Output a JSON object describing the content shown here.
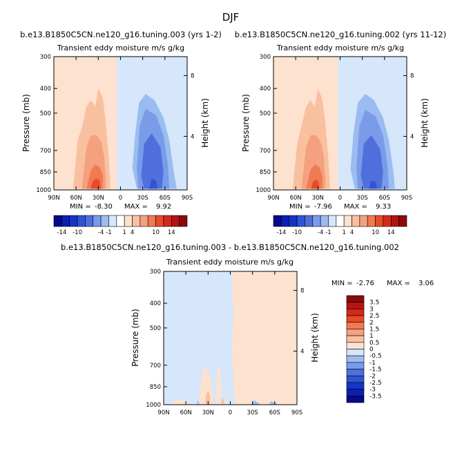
{
  "figure_title": "DJF",
  "chart_data": [
    {
      "type": "heatmap",
      "title": "b.e13.B1850C5CN.ne120_g16.tuning.003 (yrs 1-2)",
      "subtitle": "Transient eddy moisture m/s g/kg",
      "ylabel": "Pressure (mb)",
      "y2label": "Height (km)",
      "xticks": [
        "90N",
        "60N",
        "30N",
        "0",
        "30S",
        "60S",
        "90S"
      ],
      "yticks": [
        "300",
        "400",
        "500",
        "700",
        "850",
        "1000"
      ],
      "y2ticks": [
        "8",
        "4"
      ],
      "xlim": [
        90,
        -90
      ],
      "ylim": [
        1000,
        300
      ],
      "yscale": "log",
      "min_label": "MIN =",
      "min_value": "-8.30",
      "max_label": "MAX =",
      "max_value": "9.92",
      "contour_levels": [
        -14,
        -12,
        -10,
        -8,
        -6,
        -4,
        -2,
        -1,
        0,
        1,
        2,
        4,
        6,
        8,
        10,
        12,
        14
      ],
      "colorbar_labels": [
        "-14",
        "-10",
        "-4",
        "-1",
        "1",
        "4",
        "10",
        "14"
      ],
      "fields": [
        {
          "color": "#fde2cf",
          "points": [
            [
              90,
              300
            ],
            [
              5,
              300
            ],
            [
              5,
              1000
            ],
            [
              90,
              1000
            ]
          ]
        },
        {
          "color": "#d6e6fb",
          "points": [
            [
              5,
              300
            ],
            [
              -90,
              300
            ],
            [
              -90,
              1000
            ],
            [
              5,
              1000
            ]
          ]
        },
        {
          "color": "#f9c0a0",
          "points": [
            [
              58,
              640
            ],
            [
              52,
              570
            ],
            [
              46,
              470
            ],
            [
              40,
              445
            ],
            [
              34,
              470
            ],
            [
              30,
              400
            ],
            [
              24,
              435
            ],
            [
              20,
              540
            ],
            [
              16,
              740
            ],
            [
              14,
              930
            ],
            [
              14,
              990
            ],
            [
              64,
              990
            ],
            [
              62,
              860
            ]
          ]
        },
        {
          "color": "#f5a07e",
          "points": [
            [
              50,
              860
            ],
            [
              46,
              680
            ],
            [
              40,
              610
            ],
            [
              32,
              610
            ],
            [
              26,
              650
            ],
            [
              22,
              740
            ],
            [
              20,
              900
            ],
            [
              20,
              990
            ],
            [
              52,
              990
            ]
          ]
        },
        {
          "color": "#f07a52",
          "points": [
            [
              44,
              940
            ],
            [
              40,
              835
            ],
            [
              34,
              795
            ],
            [
              28,
              815
            ],
            [
              24,
              880
            ],
            [
              24,
              990
            ],
            [
              46,
              990
            ]
          ]
        },
        {
          "color": "#e84a2a",
          "points": [
            [
              40,
              990
            ],
            [
              38,
              930
            ],
            [
              33,
              900
            ],
            [
              28,
              920
            ],
            [
              27,
              990
            ]
          ]
        },
        {
          "color": "#9bbcf1",
          "points": [
            [
              -16,
              820
            ],
            [
              -20,
              600
            ],
            [
              -25,
              455
            ],
            [
              -34,
              420
            ],
            [
              -46,
              445
            ],
            [
              -58,
              520
            ],
            [
              -66,
              640
            ],
            [
              -72,
              850
            ],
            [
              -76,
              990
            ],
            [
              -22,
              990
            ]
          ]
        },
        {
          "color": "#7a9be8",
          "points": [
            [
              -22,
              820
            ],
            [
              -26,
              560
            ],
            [
              -34,
              480
            ],
            [
              -48,
              510
            ],
            [
              -58,
              610
            ],
            [
              -64,
              800
            ],
            [
              -66,
              990
            ],
            [
              -24,
              990
            ]
          ]
        },
        {
          "color": "#4f6fdc",
          "points": [
            [
              -28,
              880
            ],
            [
              -32,
              660
            ],
            [
              -42,
              600
            ],
            [
              -54,
              680
            ],
            [
              -58,
              850
            ],
            [
              -56,
              990
            ],
            [
              -32,
              990
            ]
          ]
        },
        {
          "color": "#2f55d0",
          "points": [
            [
              -40,
              960
            ],
            [
              -42,
              900
            ],
            [
              -48,
              920
            ],
            [
              -50,
              990
            ],
            [
              -38,
              990
            ]
          ]
        }
      ]
    },
    {
      "type": "heatmap",
      "title": "b.e13.B1850C5CN.ne120_g16.tuning.002 (yrs 11-12)",
      "subtitle": "Transient eddy moisture m/s g/kg",
      "ylabel": "Pressure (mb)",
      "y2label": "Height (km)",
      "xticks": [
        "90N",
        "60N",
        "30N",
        "0",
        "30S",
        "60S",
        "90S"
      ],
      "yticks": [
        "300",
        "400",
        "500",
        "700",
        "850",
        "1000"
      ],
      "y2ticks": [
        "8",
        "4"
      ],
      "xlim": [
        90,
        -90
      ],
      "ylim": [
        1000,
        300
      ],
      "yscale": "log",
      "min_label": "MIN =",
      "min_value": "-7.96",
      "max_label": "MAX =",
      "max_value": "9.33",
      "contour_levels": [
        -14,
        -12,
        -10,
        -8,
        -6,
        -4,
        -2,
        -1,
        0,
        1,
        2,
        4,
        6,
        8,
        10,
        12,
        14
      ],
      "colorbar_labels": [
        "-14",
        "-10",
        "-4",
        "-1",
        "1",
        "4",
        "10",
        "14"
      ],
      "fields": [
        {
          "color": "#fde2cf",
          "points": [
            [
              90,
              300
            ],
            [
              3,
              300
            ],
            [
              3,
              1000
            ],
            [
              90,
              1000
            ]
          ]
        },
        {
          "color": "#d6e6fb",
          "points": [
            [
              3,
              300
            ],
            [
              -90,
              300
            ],
            [
              -90,
              1000
            ],
            [
              3,
              1000
            ]
          ]
        },
        {
          "color": "#f9c0a0",
          "points": [
            [
              58,
              660
            ],
            [
              52,
              560
            ],
            [
              46,
              470
            ],
            [
              40,
              445
            ],
            [
              34,
              470
            ],
            [
              30,
              400
            ],
            [
              24,
              440
            ],
            [
              20,
              545
            ],
            [
              16,
              740
            ],
            [
              14,
              930
            ],
            [
              14,
              990
            ],
            [
              64,
              990
            ],
            [
              62,
              860
            ]
          ]
        },
        {
          "color": "#f5a07e",
          "points": [
            [
              50,
              860
            ],
            [
              46,
              680
            ],
            [
              40,
              610
            ],
            [
              32,
              610
            ],
            [
              26,
              650
            ],
            [
              22,
              740
            ],
            [
              20,
              900
            ],
            [
              20,
              990
            ],
            [
              52,
              990
            ]
          ]
        },
        {
          "color": "#f07a52",
          "points": [
            [
              44,
              940
            ],
            [
              40,
              835
            ],
            [
              34,
              795
            ],
            [
              28,
              815
            ],
            [
              24,
              880
            ],
            [
              24,
              990
            ],
            [
              46,
              990
            ]
          ]
        },
        {
          "color": "#e84a2a",
          "points": [
            [
              39,
              990
            ],
            [
              37,
              935
            ],
            [
              33,
              910
            ],
            [
              29,
              925
            ],
            [
              28,
              990
            ]
          ]
        },
        {
          "color": "#9bbcf1",
          "points": [
            [
              -14,
              830
            ],
            [
              -18,
              600
            ],
            [
              -24,
              455
            ],
            [
              -34,
              420
            ],
            [
              -46,
              445
            ],
            [
              -58,
              520
            ],
            [
              -66,
              640
            ],
            [
              -72,
              850
            ],
            [
              -74,
              990
            ],
            [
              -20,
              990
            ]
          ]
        },
        {
          "color": "#7a9be8",
          "points": [
            [
              -22,
              820
            ],
            [
              -26,
              560
            ],
            [
              -34,
              485
            ],
            [
              -48,
              515
            ],
            [
              -58,
              610
            ],
            [
              -64,
              800
            ],
            [
              -66,
              990
            ],
            [
              -24,
              990
            ]
          ]
        },
        {
          "color": "#4f6fdc",
          "points": [
            [
              -28,
              880
            ],
            [
              -32,
              660
            ],
            [
              -42,
              610
            ],
            [
              -54,
              690
            ],
            [
              -58,
              850
            ],
            [
              -56,
              990
            ],
            [
              -32,
              990
            ]
          ]
        },
        {
          "color": "#2f55d0",
          "points": [
            [
              -40,
              970
            ],
            [
              -42,
              920
            ],
            [
              -48,
              930
            ],
            [
              -50,
              990
            ],
            [
              -38,
              990
            ]
          ]
        }
      ]
    },
    {
      "type": "heatmap",
      "title": "b.e13.B1850C5CN.ne120_g16.tuning.003 - b.e13.B1850C5CN.ne120_g16.tuning.002",
      "subtitle": "Transient eddy moisture m/s g/kg",
      "ylabel": "Pressure (mb)",
      "y2label": "Height (km)",
      "xticks": [
        "90N",
        "60N",
        "30N",
        "0",
        "30S",
        "60S",
        "90S"
      ],
      "yticks": [
        "300",
        "400",
        "500",
        "700",
        "850",
        "1000"
      ],
      "y2ticks": [
        "8",
        "4"
      ],
      "xlim": [
        90,
        -90
      ],
      "ylim": [
        1000,
        300
      ],
      "yscale": "log",
      "min_label": "MIN =",
      "min_value": "-2.76",
      "max_label": "MAX =",
      "max_value": "3.06",
      "contour_levels": [
        -3.5,
        -3,
        -2.5,
        -2,
        -1.5,
        -1,
        -0.5,
        0,
        0.5,
        1,
        1.5,
        2,
        2.5,
        3,
        3.5
      ],
      "colorbar_labels": [
        "3.5",
        "3",
        "2.5",
        "2",
        "1.5",
        "1",
        "0.5",
        "0",
        "-0.5",
        "-1",
        "-1.5",
        "-2",
        "-2.5",
        "-3",
        "-3.5"
      ],
      "fields": [
        {
          "color": "#d6e6fb",
          "points": [
            [
              90,
              300
            ],
            [
              -90,
              300
            ],
            [
              -90,
              1000
            ],
            [
              90,
              1000
            ]
          ]
        },
        {
          "color": "#fde2cf",
          "points": [
            [
              -2,
              300
            ],
            [
              -90,
              300
            ],
            [
              -90,
              1000
            ],
            [
              -6,
              1000
            ],
            [
              -4,
              800
            ],
            [
              -2,
              600
            ],
            [
              -4,
              450
            ]
          ]
        },
        {
          "color": "#fde2cf",
          "points": [
            [
              42,
              1000
            ],
            [
              40,
              800
            ],
            [
              34,
              700
            ],
            [
              28,
              760
            ],
            [
              24,
              880
            ],
            [
              24,
              1000
            ]
          ]
        },
        {
          "color": "#fde2cf",
          "points": [
            [
              20,
              1000
            ],
            [
              18,
              760
            ],
            [
              14,
              680
            ],
            [
              12,
              850
            ],
            [
              14,
              1000
            ]
          ]
        },
        {
          "color": "#fde2cf",
          "points": [
            [
              82,
              1000
            ],
            [
              75,
              960
            ],
            [
              64,
              955
            ],
            [
              56,
              990
            ],
            [
              56,
              1000
            ]
          ]
        },
        {
          "color": "#fde2cf",
          "points": [
            [
              6,
              1000
            ],
            [
              6,
              920
            ],
            [
              3,
              930
            ],
            [
              3,
              1000
            ]
          ]
        },
        {
          "color": "#f9c0a0",
          "points": [
            [
              34,
              1000
            ],
            [
              33,
              920
            ],
            [
              30,
              880
            ],
            [
              27,
              930
            ],
            [
              27,
              1000
            ]
          ]
        },
        {
          "color": "#f9c0a0",
          "points": [
            [
              12,
              1000
            ],
            [
              12,
              950
            ],
            [
              9,
              955
            ],
            [
              9,
              1000
            ]
          ]
        },
        {
          "color": "#9bbcf1",
          "points": [
            [
              45,
              1000
            ],
            [
              44,
              960
            ],
            [
              42,
              990
            ],
            [
              42,
              1000
            ]
          ]
        },
        {
          "color": "#9bbcf1",
          "points": [
            [
              -28,
              1000
            ],
            [
              -32,
              960
            ],
            [
              -38,
              985
            ],
            [
              -40,
              1000
            ]
          ]
        },
        {
          "color": "#9bbcf1",
          "points": [
            [
              -52,
              1000
            ],
            [
              -55,
              970
            ],
            [
              -62,
              990
            ],
            [
              -64,
              1000
            ]
          ]
        }
      ]
    }
  ],
  "colors": {
    "palette": [
      "#08088c",
      "#0c1fb0",
      "#1435c8",
      "#2f55d0",
      "#4f6fdc",
      "#7a9be8",
      "#9bbcf1",
      "#d6e6fb",
      "#ffffff",
      "#fde2cf",
      "#f9c0a0",
      "#f5a07e",
      "#f07a52",
      "#e84a2a",
      "#d42a1a",
      "#b41414",
      "#8c0a0a"
    ]
  }
}
